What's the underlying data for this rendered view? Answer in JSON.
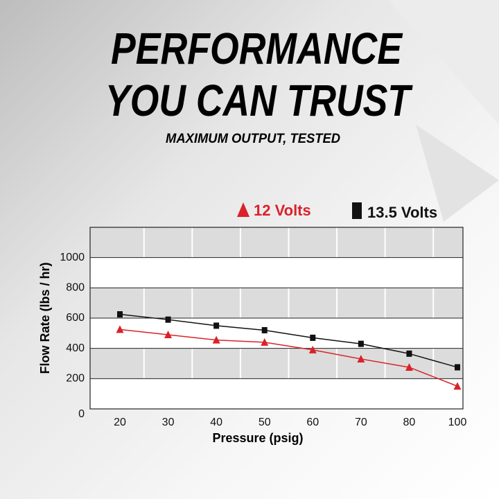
{
  "chart_data": {
    "type": "line",
    "title": [
      "PERFORMANCE",
      "YOU CAN TRUST"
    ],
    "subtitle": "MAXIMUM OUTPUT, TESTED",
    "x_label": "Pressure (psig)",
    "y_label": "Flow Rate (lbs / hr)",
    "categories": [
      "20",
      "30",
      "40",
      "50",
      "60",
      "70",
      "80",
      "100"
    ],
    "series": [
      {
        "name": "12 Volts",
        "color": "#d9222a",
        "marker": "triangle",
        "values": [
          525,
          490,
          455,
          440,
          390,
          330,
          275,
          150
        ]
      },
      {
        "name": "13.5 Volts",
        "color": "#111111",
        "marker": "square",
        "values": [
          625,
          590,
          550,
          520,
          470,
          430,
          365,
          275
        ]
      }
    ],
    "ylim": [
      0,
      1200
    ],
    "yticks": [
      0,
      200,
      400,
      600,
      800,
      1000
    ],
    "grid": true
  }
}
